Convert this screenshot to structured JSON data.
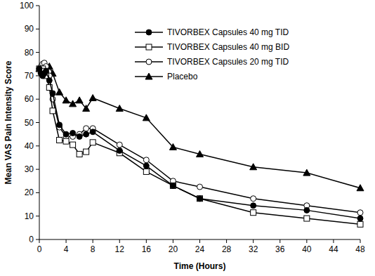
{
  "chart_data": {
    "type": "line",
    "x_label": "Time (Hours)",
    "y_label": "Mean VAS Pain Intensity Score",
    "x": [
      0,
      0.25,
      0.5,
      0.75,
      1,
      1.5,
      2,
      3,
      4,
      5,
      6,
      7,
      8,
      12,
      16,
      20,
      24,
      32,
      40,
      48
    ],
    "xlim": [
      0,
      48
    ],
    "xticks": [
      0,
      4,
      8,
      12,
      16,
      20,
      24,
      28,
      32,
      36,
      40,
      44,
      48
    ],
    "ylim": [
      0,
      100
    ],
    "yticks": [
      0,
      10,
      20,
      30,
      40,
      50,
      60,
      70,
      80,
      90,
      100
    ],
    "grid": false,
    "legend": "upper center",
    "series": [
      {
        "name": "TIVORBEX Capsules 40 mg TID",
        "color": "#000000",
        "marker": "circle",
        "line_style": "solid",
        "values": [
          73,
          71,
          70,
          71,
          72,
          68,
          62.5,
          49,
          45,
          45.5,
          44,
          45,
          46,
          38,
          31.5,
          23,
          17.5,
          14.5,
          12.5,
          9
        ]
      },
      {
        "name": "TIVORBEX Capsules 40 mg BID",
        "color": "#000000",
        "marker": "open_square",
        "line_style": "solid",
        "values": [
          73,
          72,
          73,
          72,
          70,
          65,
          55,
          42.5,
          42,
          40.5,
          36.5,
          37.5,
          41.5,
          37,
          29,
          23,
          17.5,
          11.5,
          9,
          6.5
        ]
      },
      {
        "name": "TIVORBEX Capsules 20 mg TID",
        "color": "#000000",
        "marker": "open_circle",
        "line_style": "solid",
        "values": [
          73,
          74,
          75,
          75.5,
          74,
          70,
          60,
          48,
          44,
          44,
          45,
          47.5,
          47.5,
          40.5,
          34,
          25,
          22.5,
          17.5,
          14.5,
          11.5
        ]
      },
      {
        "name": "Placebo",
        "color": "#000000",
        "marker": "triangle",
        "line_style": "solid",
        "values": [
          73,
          73.5,
          74,
          74.5,
          74,
          74,
          71,
          63,
          59.5,
          58,
          59.5,
          56,
          60.5,
          56,
          52,
          39.5,
          36.5,
          31,
          28.5,
          22
        ]
      }
    ]
  }
}
